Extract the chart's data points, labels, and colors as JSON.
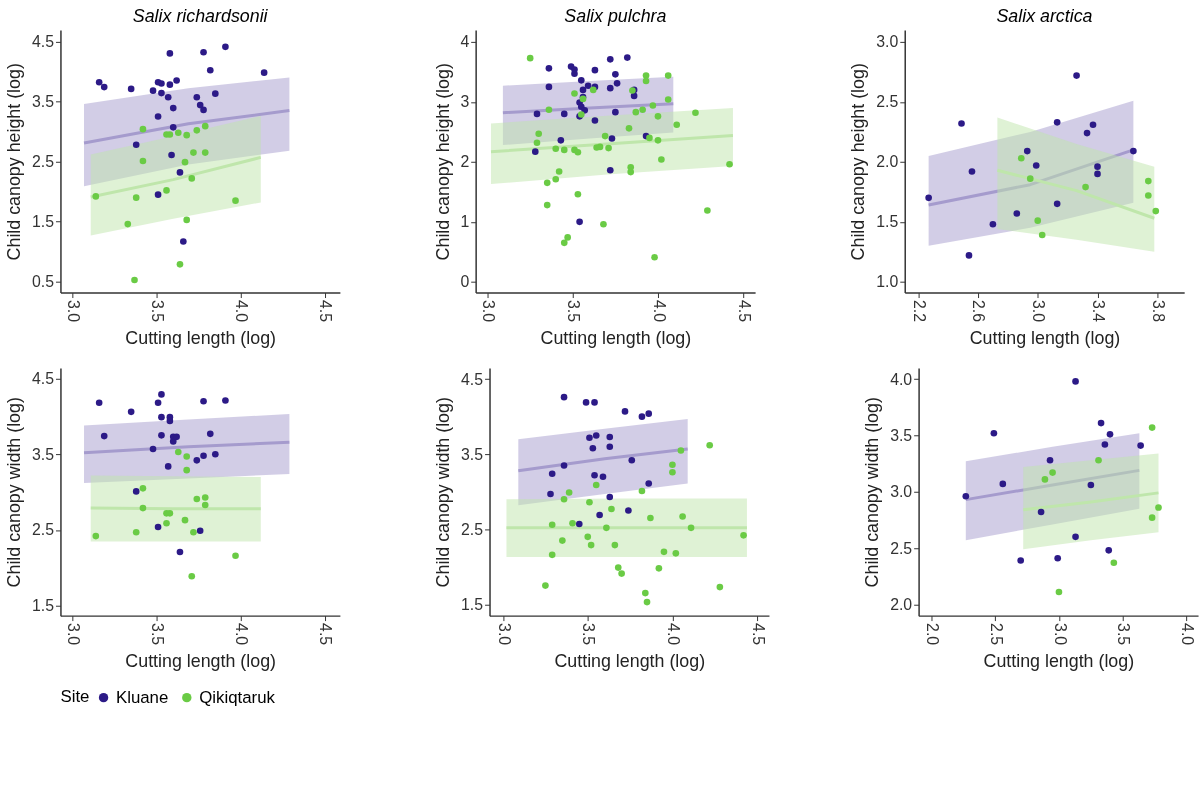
{
  "chart_data": [
    {
      "type": "scatter",
      "title": "Salix richardsonii",
      "xlabel": "Cutting length (log)",
      "ylabel": "Child canopy height (log)",
      "xlim": [
        2.93,
        4.59
      ],
      "ylim": [
        0.32,
        4.69
      ],
      "xticks": [
        {
          "value": 3,
          "label": "3.0"
        },
        3.5,
        {
          "value": 4,
          "label": "4.0"
        },
        4.5
      ],
      "yticks": [
        0.5,
        1.5,
        2.5,
        3.5,
        4.5
      ],
      "grid": false,
      "legend": "bottom",
      "legend_title": "Site",
      "series": [
        {
          "type": "line",
          "color": "#a59bcd",
          "x": [
            3.07,
            3.69,
            4.29
          ],
          "values": [
            2.81,
            3.13,
            3.35
          ],
          "lower": [
            2.09,
            2.45,
            2.68
          ],
          "upper": [
            3.46,
            3.72,
            3.9
          ]
        },
        {
          "type": "line",
          "color": "#bfe6ab",
          "x": [
            3.11,
            3.6,
            4.12
          ],
          "values": [
            1.91,
            2.2,
            2.57
          ],
          "lower": [
            1.27,
            1.55,
            1.82
          ],
          "upper": [
            2.62,
            2.92,
            3.26
          ]
        },
        {
          "name": "Kluane",
          "type": "scatter",
          "color": "#2c1a87",
          "x": [
            3.16,
            3.19,
            3.35,
            3.38,
            3.48,
            3.51,
            3.53,
            3.51,
            3.51,
            3.53,
            3.57,
            3.58,
            3.58,
            3.6,
            3.6,
            3.59,
            3.62,
            3.64,
            3.66,
            3.74,
            3.76,
            3.78,
            3.78,
            3.82,
            3.85,
            3.91,
            4.14
          ],
          "values": [
            3.82,
            3.74,
            3.71,
            2.78,
            3.68,
            3.82,
            3.8,
            3.25,
            1.95,
            3.64,
            3.57,
            4.3,
            3.78,
            3.39,
            3.07,
            2.61,
            3.85,
            2.32,
            1.17,
            3.57,
            3.44,
            4.32,
            3.36,
            4.02,
            3.63,
            4.41,
            3.98
          ]
        },
        {
          "name": "Qikiqtaruk",
          "type": "scatter",
          "color": "#6acb45",
          "x": [
            3.14,
            3.33,
            3.37,
            3.38,
            3.42,
            3.42,
            3.56,
            3.56,
            3.58,
            3.63,
            3.64,
            3.67,
            3.68,
            3.68,
            3.71,
            3.72,
            3.74,
            3.79,
            3.79,
            3.97
          ],
          "values": [
            1.92,
            1.46,
            0.53,
            1.9,
            3.04,
            2.51,
            2.02,
            2.95,
            2.95,
            2.98,
            0.79,
            2.49,
            2.94,
            1.53,
            2.22,
            2.65,
            3.02,
            3.09,
            2.65,
            1.85
          ]
        }
      ]
    },
    {
      "type": "scatter",
      "title": "Salix pulchra",
      "xlabel": "Cutting length (log)",
      "ylabel": "Child canopy height (log)",
      "xlim": [
        2.93,
        4.57
      ],
      "ylim": [
        -0.18,
        4.2
      ],
      "xticks": [
        {
          "value": 3,
          "label": "3.0"
        },
        3.5,
        {
          "value": 4,
          "label": "4.0"
        },
        4.5
      ],
      "yticks": [
        0,
        1,
        2,
        3,
        4
      ],
      "grid": false,
      "series": [
        {
          "type": "line",
          "color": "#a59bcd",
          "x": [
            3.09,
            3.6,
            4.09
          ],
          "values": [
            2.82,
            2.9,
            2.97
          ],
          "lower": [
            2.28,
            2.39,
            2.49
          ],
          "upper": [
            3.27,
            3.35,
            3.42
          ]
        },
        {
          "type": "line",
          "color": "#bfe6ab",
          "x": [
            3.02,
            3.7,
            4.44
          ],
          "values": [
            2.17,
            2.3,
            2.44
          ],
          "lower": [
            1.63,
            1.79,
            1.93
          ],
          "upper": [
            2.64,
            2.77,
            2.9
          ]
        },
        {
          "name": "Kluane",
          "type": "scatter",
          "color": "#2c1a87",
          "x": [
            3.36,
            3.36,
            3.29,
            3.28,
            3.43,
            3.45,
            3.49,
            3.51,
            3.51,
            3.55,
            3.56,
            3.56,
            3.54,
            3.55,
            3.57,
            3.54,
            3.54,
            3.59,
            3.63,
            3.63,
            3.63,
            3.72,
            3.72,
            3.72,
            3.73,
            3.75,
            3.75,
            3.76,
            3.82,
            3.86,
            3.86,
            3.93
          ],
          "values": [
            3.56,
            3.25,
            2.8,
            2.17,
            2.36,
            2.8,
            3.59,
            3.54,
            3.47,
            3.36,
            3.2,
            3.08,
            2.99,
            2.92,
            2.86,
            2.76,
            1.0,
            3.27,
            3.53,
            3.25,
            2.69,
            3.71,
            3.23,
            1.86,
            2.39,
            3.46,
            2.83,
            3.31,
            3.74,
            3.2,
            3.1,
            2.43
          ]
        },
        {
          "name": "Qikiqtaruk",
          "type": "scatter",
          "color": "#6acb45",
          "x": [
            3.25,
            3.36,
            3.3,
            3.29,
            3.35,
            3.35,
            3.4,
            3.4,
            3.42,
            3.45,
            3.45,
            3.47,
            3.51,
            3.51,
            3.53,
            3.53,
            3.55,
            3.56,
            3.62,
            3.64,
            3.66,
            3.68,
            3.69,
            3.71,
            3.83,
            3.87,
            3.91,
            3.85,
            3.93,
            3.93,
            3.97,
            3.95,
            4.0,
            4.0,
            4.02,
            3.98,
            4.06,
            4.06,
            4.11,
            3.84,
            3.84,
            4.22,
            4.29,
            4.42
          ],
          "values": [
            3.73,
            2.87,
            2.47,
            2.32,
            1.65,
            1.28,
            2.22,
            1.71,
            1.84,
            2.2,
            0.65,
            0.74,
            3.14,
            2.2,
            2.16,
            1.46,
            2.79,
            3.05,
            3.2,
            2.24,
            2.25,
            0.96,
            2.43,
            2.23,
            2.56,
            2.83,
            2.87,
            3.19,
            3.44,
            3.35,
            2.94,
            2.4,
            2.76,
            2.36,
            2.04,
            0.41,
            3.44,
            3.04,
            2.62,
            1.91,
            1.83,
            2.82,
            1.19,
            1.96
          ]
        }
      ]
    },
    {
      "type": "scatter",
      "title": "Salix arctica",
      "xlabel": "Cutting length (log)",
      "ylabel": "Child canopy height (log)",
      "xlim": [
        2.11,
        3.98
      ],
      "ylim": [
        0.91,
        3.1
      ],
      "xticks": [
        2.2,
        2.6,
        {
          "value": 3,
          "label": "3.0"
        },
        3.4,
        3.8
      ],
      "yticks": [
        {
          "value": 1,
          "label": "1.0"
        },
        1.5,
        {
          "value": 2,
          "label": "2.0"
        },
        2.5,
        {
          "value": 3,
          "label": "3.0"
        }
      ],
      "grid": false,
      "series": [
        {
          "type": "line",
          "color": "#a59bcd",
          "x": [
            2.27,
            2.95,
            3.64
          ],
          "values": [
            1.64,
            1.81,
            2.1
          ],
          "lower": [
            1.3,
            1.45,
            1.66
          ],
          "upper": [
            2.05,
            2.25,
            2.51
          ]
        },
        {
          "type": "line",
          "color": "#bfe6ab",
          "x": [
            2.73,
            3.26,
            3.78
          ],
          "values": [
            1.93,
            1.76,
            1.53
          ],
          "lower": [
            1.44,
            1.35,
            1.25
          ],
          "upper": [
            2.37,
            2.15,
            1.96
          ]
        },
        {
          "name": "Kluane",
          "type": "scatter",
          "color": "#2c1a87",
          "x": [
            2.27,
            2.49,
            2.54,
            2.56,
            2.7,
            2.86,
            2.93,
            2.99,
            3.13,
            3.13,
            3.26,
            3.33,
            3.37,
            3.4,
            3.4,
            3.64
          ],
          "values": [
            1.7,
            2.32,
            1.22,
            1.92,
            1.48,
            1.57,
            2.09,
            1.97,
            2.33,
            1.65,
            2.72,
            2.24,
            2.31,
            1.96,
            1.9,
            2.09
          ]
        },
        {
          "name": "Qikiqtaruk",
          "type": "scatter",
          "color": "#6acb45",
          "x": [
            2.89,
            2.95,
            3.0,
            3.03,
            3.32,
            3.74,
            3.74,
            3.79
          ],
          "values": [
            2.03,
            1.86,
            1.51,
            1.39,
            1.79,
            1.84,
            1.72,
            1.59
          ]
        }
      ]
    },
    {
      "type": "scatter",
      "xlabel": "Cutting length (log)",
      "ylabel": "Child canopy width (log)",
      "xlim": [
        2.93,
        4.59
      ],
      "ylim": [
        1.37,
        4.64
      ],
      "xticks": [
        {
          "value": 3,
          "label": "3.0"
        },
        3.5,
        {
          "value": 4,
          "label": "4.0"
        },
        4.5
      ],
      "yticks": [
        1.5,
        2.5,
        3.5,
        4.5
      ],
      "grid": false,
      "series": [
        {
          "type": "line",
          "color": "#a59bcd",
          "x": [
            3.07,
            3.69,
            4.29
          ],
          "values": [
            3.52,
            3.6,
            3.66
          ],
          "lower": [
            3.12,
            3.18,
            3.24
          ],
          "upper": [
            3.88,
            3.96,
            4.03
          ]
        },
        {
          "type": "line",
          "color": "#bfe6ab",
          "x": [
            3.11,
            3.6,
            4.12
          ],
          "values": [
            2.79,
            2.78,
            2.78
          ],
          "lower": [
            2.35,
            2.35,
            2.35
          ],
          "upper": [
            3.22,
            3.21,
            3.2
          ]
        },
        {
          "name": "Kluane",
          "type": "scatter",
          "color": "#2c1a87",
          "x": [
            3.16,
            3.19,
            3.35,
            3.38,
            3.48,
            3.51,
            3.53,
            3.53,
            3.53,
            3.51,
            3.57,
            3.58,
            3.58,
            3.6,
            3.6,
            3.62,
            3.64,
            3.74,
            3.76,
            3.78,
            3.78,
            3.82,
            3.85,
            3.91
          ],
          "values": [
            4.18,
            3.74,
            4.06,
            3.01,
            3.57,
            4.18,
            4.29,
            3.99,
            3.75,
            2.54,
            3.34,
            3.99,
            3.94,
            3.67,
            3.73,
            3.73,
            2.21,
            3.42,
            2.49,
            4.2,
            3.48,
            3.77,
            3.5,
            4.21
          ]
        },
        {
          "name": "Qikiqtaruk",
          "type": "scatter",
          "color": "#6acb45",
          "x": [
            3.14,
            3.38,
            3.42,
            3.42,
            3.56,
            3.56,
            3.58,
            3.63,
            3.67,
            3.68,
            3.68,
            3.71,
            3.72,
            3.74,
            3.79,
            3.79,
            3.97
          ],
          "values": [
            2.42,
            2.47,
            3.05,
            2.79,
            2.59,
            2.72,
            2.72,
            3.53,
            2.63,
            3.47,
            3.29,
            1.89,
            2.47,
            2.91,
            2.93,
            2.83,
            2.16
          ]
        }
      ]
    },
    {
      "type": "scatter",
      "xlabel": "Cutting length (log)",
      "ylabel": "Child canopy width (log)",
      "xlim": [
        2.92,
        4.57
      ],
      "ylim": [
        1.35,
        4.65
      ],
      "xticks": [
        {
          "value": 3,
          "label": "3.0"
        },
        3.5,
        {
          "value": 4,
          "label": "4.0"
        },
        4.5
      ],
      "yticks": [
        1.5,
        2.5,
        3.5,
        4.5
      ],
      "grid": false,
      "series": [
        {
          "type": "line",
          "color": "#a59bcd",
          "x": [
            3.09,
            3.6,
            4.09
          ],
          "values": [
            3.28,
            3.44,
            3.57
          ],
          "lower": [
            2.82,
            2.97,
            3.11
          ],
          "upper": [
            3.7,
            3.84,
            3.97
          ]
        },
        {
          "type": "line",
          "color": "#bfe6ab",
          "x": [
            3.02,
            3.7,
            4.44
          ],
          "values": [
            2.52,
            2.52,
            2.52
          ],
          "lower": [
            2.13,
            2.13,
            2.13
          ],
          "upper": [
            2.9,
            2.91,
            2.91
          ]
        },
        {
          "name": "Kluane",
          "type": "scatter",
          "color": "#2c1a87",
          "x": [
            3.36,
            3.49,
            3.54,
            3.72,
            3.82,
            3.86,
            3.51,
            3.55,
            3.63,
            3.53,
            3.63,
            3.36,
            3.76,
            3.29,
            3.54,
            3.59,
            3.86,
            3.28,
            3.63,
            3.57,
            3.74,
            3.45
          ],
          "values": [
            4.26,
            4.19,
            4.19,
            4.07,
            4.0,
            4.04,
            3.72,
            3.75,
            3.73,
            3.58,
            3.6,
            3.35,
            3.42,
            3.24,
            3.22,
            3.2,
            3.11,
            2.97,
            2.93,
            2.69,
            2.75,
            2.57
          ]
        },
        {
          "name": "Qikiqtaruk",
          "type": "scatter",
          "color": "#6acb45",
          "x": [
            3.25,
            3.29,
            3.29,
            3.35,
            3.36,
            3.39,
            3.41,
            3.5,
            3.51,
            3.52,
            3.55,
            3.61,
            3.64,
            3.66,
            3.68,
            3.7,
            3.82,
            3.84,
            3.85,
            3.87,
            3.92,
            3.95,
            4.0,
            4.0,
            4.02,
            4.05,
            4.06,
            4.11,
            4.22,
            4.28,
            4.42
          ],
          "values": [
            1.75,
            2.56,
            2.16,
            2.35,
            2.9,
            2.99,
            2.58,
            2.4,
            2.86,
            2.29,
            3.09,
            2.52,
            2.77,
            2.29,
            1.99,
            1.91,
            3.01,
            1.65,
            1.53,
            2.65,
            1.98,
            2.2,
            3.36,
            3.26,
            2.18,
            3.55,
            2.67,
            2.52,
            3.62,
            1.73,
            2.42
          ]
        }
      ]
    },
    {
      "type": "scatter",
      "xlabel": "Cutting length (log)",
      "ylabel": "Child canopy width (log)",
      "xlim": [
        1.9,
        4.09
      ],
      "ylim": [
        1.9,
        4.1
      ],
      "xticks": [
        {
          "value": 2,
          "label": "2.0"
        },
        2.5,
        {
          "value": 3,
          "label": "3.0"
        },
        3.5,
        {
          "value": 4,
          "label": "4.0"
        }
      ],
      "yticks": [
        {
          "value": 2,
          "label": "2.0"
        },
        2.5,
        {
          "value": 3,
          "label": "3.0"
        },
        3.5,
        {
          "value": 4,
          "label": "4.0"
        }
      ],
      "grid": false,
      "series": [
        {
          "type": "line",
          "color": "#a59bcd",
          "x": [
            2.27,
            2.95,
            3.63
          ],
          "values": [
            2.93,
            3.06,
            3.19
          ],
          "lower": [
            2.57,
            2.71,
            2.85
          ],
          "upper": [
            3.27,
            3.4,
            3.52
          ]
        },
        {
          "type": "line",
          "color": "#bfe6ab",
          "x": [
            2.72,
            3.25,
            3.78
          ],
          "values": [
            2.84,
            2.91,
            2.99
          ],
          "lower": [
            2.49,
            2.57,
            2.64
          ],
          "upper": [
            3.22,
            3.28,
            3.34
          ]
        },
        {
          "name": "Kluane",
          "type": "scatter",
          "color": "#2c1a87",
          "x": [
            2.27,
            2.49,
            2.56,
            2.7,
            2.86,
            2.93,
            2.99,
            3.13,
            3.13,
            3.25,
            3.33,
            3.36,
            3.4,
            3.39,
            3.64
          ],
          "values": [
            2.96,
            3.52,
            3.07,
            2.39,
            2.82,
            3.28,
            2.41,
            3.98,
            2.6,
            3.06,
            3.61,
            3.42,
            3.51,
            2.48,
            3.41
          ]
        },
        {
          "name": "Qikiqtaruk",
          "type": "scatter",
          "color": "#6acb45",
          "x": [
            2.89,
            2.95,
            3.0,
            3.31,
            3.43,
            3.73,
            3.73,
            3.78
          ],
          "values": [
            3.11,
            3.17,
            2.11,
            3.28,
            2.37,
            3.57,
            2.77,
            2.86
          ]
        }
      ]
    }
  ]
}
